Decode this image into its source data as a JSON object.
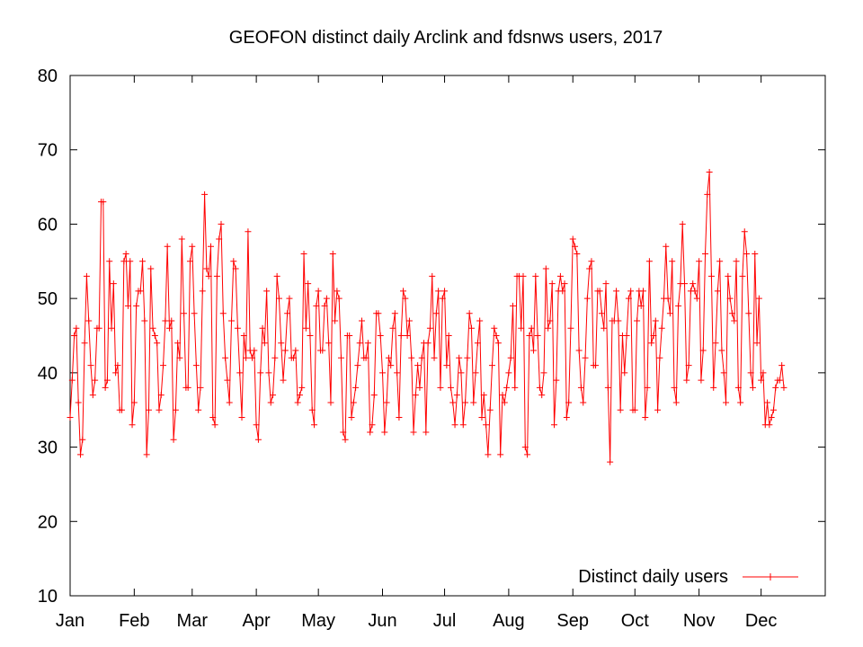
{
  "chart_data": {
    "type": "line",
    "title": "GEOFON distinct daily Arclink and fdsnws users, 2017",
    "xlabel": "",
    "ylabel": "",
    "ylim": [
      10,
      80
    ],
    "yticks": [
      "10",
      "20",
      "30",
      "40",
      "50",
      "60",
      "70",
      "80"
    ],
    "xlim": [
      1,
      366
    ],
    "month_ticks": [
      {
        "label": "Jan",
        "day": 1
      },
      {
        "label": "Feb",
        "day": 32
      },
      {
        "label": "Mar",
        "day": 60
      },
      {
        "label": "Apr",
        "day": 91
      },
      {
        "label": "May",
        "day": 121
      },
      {
        "label": "Jun",
        "day": 152
      },
      {
        "label": "Jul",
        "day": 182
      },
      {
        "label": "Aug",
        "day": 213
      },
      {
        "label": "Sep",
        "day": 244
      },
      {
        "label": "Oct",
        "day": 274
      },
      {
        "label": "Nov",
        "day": 305
      },
      {
        "label": "Dec",
        "day": 335
      }
    ],
    "grid": false,
    "legend_position": "bottom-right",
    "series": [
      {
        "name": "Distinct daily users",
        "color": "#ff0000",
        "marker": "plus",
        "x_start_day": 1,
        "values": [
          34,
          39,
          45,
          46,
          36,
          29,
          31,
          44,
          53,
          47,
          41,
          37,
          39,
          46,
          46,
          63,
          63,
          38,
          39,
          55,
          46,
          52,
          40,
          41,
          35,
          35,
          55,
          56,
          49,
          55,
          33,
          36,
          49,
          51,
          51,
          55,
          47,
          29,
          35,
          54,
          46,
          45,
          44,
          35,
          37,
          41,
          47,
          57,
          46,
          47,
          31,
          35,
          44,
          42,
          58,
          48,
          38,
          38,
          55,
          57,
          48,
          41,
          35,
          38,
          51,
          64,
          54,
          53,
          57,
          34,
          33,
          53,
          58,
          60,
          48,
          42,
          39,
          36,
          47,
          55,
          54,
          46,
          40,
          34,
          45,
          42,
          59,
          43,
          42,
          43,
          33,
          31,
          40,
          46,
          44,
          51,
          40,
          36,
          37,
          42,
          53,
          50,
          44,
          39,
          43,
          48,
          50,
          42,
          42,
          43,
          36,
          37,
          38,
          56,
          46,
          52,
          45,
          35,
          33,
          49,
          51,
          43,
          43,
          49,
          50,
          44,
          36,
          56,
          47,
          51,
          50,
          42,
          32,
          31,
          45,
          45,
          34,
          36,
          38,
          41,
          44,
          47,
          42,
          42,
          44,
          32,
          33,
          37,
          48,
          48,
          45,
          40,
          32,
          36,
          42,
          41,
          46,
          48,
          40,
          34,
          45,
          51,
          50,
          45,
          47,
          42,
          32,
          37,
          41,
          38,
          42,
          44,
          32,
          44,
          46,
          53,
          42,
          48,
          51,
          38,
          50,
          51,
          41,
          45,
          38,
          36,
          33,
          37,
          42,
          40,
          33,
          36,
          42,
          48,
          46,
          36,
          40,
          44,
          47,
          34,
          37,
          33,
          29,
          35,
          41,
          46,
          45,
          44,
          29,
          37,
          36,
          38,
          40,
          42,
          49,
          38,
          53,
          53,
          46,
          53,
          30,
          29,
          45,
          46,
          43,
          53,
          45,
          38,
          37,
          40,
          54,
          46,
          47,
          52,
          33,
          39,
          51,
          53,
          51,
          52,
          34,
          36,
          46,
          58,
          57,
          56,
          43,
          38,
          36,
          42,
          50,
          54,
          55,
          41,
          41,
          51,
          51,
          48,
          46,
          52,
          38,
          28,
          47,
          47,
          51,
          47,
          35,
          45,
          40,
          45,
          50,
          51,
          35,
          35,
          47,
          51,
          49,
          51,
          34,
          38,
          55,
          44,
          45,
          47,
          35,
          42,
          46,
          50,
          57,
          50,
          48,
          55,
          38,
          36,
          49,
          52,
          60,
          52,
          39,
          41,
          51,
          52,
          51,
          50,
          55,
          39,
          43,
          56,
          64,
          67,
          53,
          38,
          44,
          51,
          55,
          43,
          40,
          36,
          53,
          50,
          48,
          47,
          55,
          38,
          36,
          53,
          59,
          56,
          48,
          40,
          38,
          56,
          44,
          50,
          39,
          40,
          33,
          36,
          33,
          34,
          35,
          38,
          39,
          39,
          41,
          38
        ]
      }
    ]
  }
}
